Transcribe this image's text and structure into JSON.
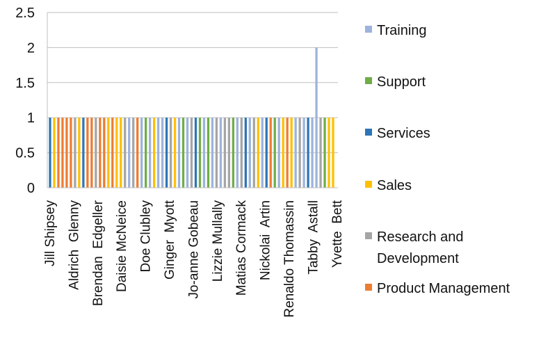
{
  "chart_data": {
    "type": "bar",
    "title": "",
    "xlabel": "",
    "ylabel": "",
    "ylim": [
      0,
      2.5
    ],
    "yticks": [
      "0",
      "0.5",
      "1",
      "1.5",
      "2",
      "2.5"
    ],
    "grid": true,
    "legend_position": "right",
    "x_tick_labels": [
      "Jill Shipsey",
      "Aldrich  Glenny",
      "Brendan  Edgeller",
      "Daisie McNeice",
      "Doe Clubley",
      "Ginger  Myott",
      "Jo-anne Gobeau",
      "Lizzie Mullally",
      "Matias Cormack",
      "Nickolai  Artin",
      "Renaldo Thomassin",
      "Tabby  Astall",
      "Yvette  Bett"
    ],
    "legend": [
      {
        "name": "Training",
        "color": "#9db3dc"
      },
      {
        "name": "Support",
        "color": "#70ad47"
      },
      {
        "name": "Services",
        "color": "#2e75b6"
      },
      {
        "name": "Sales",
        "color": "#ffc000"
      },
      {
        "name": "Research and Development",
        "color": "#a5a5a5"
      },
      {
        "name": "Product Management",
        "color": "#ed7d31"
      }
    ],
    "bars": [
      {
        "series": "Services",
        "value": 1
      },
      {
        "series": "Sales",
        "value": 1
      },
      {
        "series": "Product Management",
        "value": 1
      },
      {
        "series": "Product Management",
        "value": 1
      },
      {
        "series": "Product Management",
        "value": 1
      },
      {
        "series": "Product Management",
        "value": 1
      },
      {
        "series": "Research and Development",
        "value": 1
      },
      {
        "series": "Sales",
        "value": 1
      },
      {
        "series": "Services",
        "value": 1
      },
      {
        "series": "Product Management",
        "value": 1
      },
      {
        "series": "Product Management",
        "value": 1
      },
      {
        "series": "Research and Development",
        "value": 1
      },
      {
        "series": "Product Management",
        "value": 1
      },
      {
        "series": "Product Management",
        "value": 1
      },
      {
        "series": "Sales",
        "value": 1
      },
      {
        "series": "Product Management",
        "value": 1
      },
      {
        "series": "Sales",
        "value": 1
      },
      {
        "series": "Sales",
        "value": 1
      },
      {
        "series": "Research and Development",
        "value": 1
      },
      {
        "series": "Training",
        "value": 1
      },
      {
        "series": "Research and Development",
        "value": 1
      },
      {
        "series": "Product Management",
        "value": 1
      },
      {
        "series": "Training",
        "value": 1
      },
      {
        "series": "Support",
        "value": 1
      },
      {
        "series": "Training",
        "value": 1
      },
      {
        "series": "Sales",
        "value": 1
      },
      {
        "series": "Training",
        "value": 1
      },
      {
        "series": "Training",
        "value": 1
      },
      {
        "series": "Services",
        "value": 1
      },
      {
        "series": "Research and Development",
        "value": 1
      },
      {
        "series": "Sales",
        "value": 1
      },
      {
        "series": "Training",
        "value": 1
      },
      {
        "series": "Support",
        "value": 1
      },
      {
        "series": "Training",
        "value": 1
      },
      {
        "series": "Research and Development",
        "value": 1
      },
      {
        "series": "Services",
        "value": 1
      },
      {
        "series": "Support",
        "value": 1
      },
      {
        "series": "Training",
        "value": 1
      },
      {
        "series": "Support",
        "value": 1
      },
      {
        "series": "Training",
        "value": 1
      },
      {
        "series": "Research and Development",
        "value": 1
      },
      {
        "series": "Training",
        "value": 1
      },
      {
        "series": "Research and Development",
        "value": 1
      },
      {
        "series": "Research and Development",
        "value": 1
      },
      {
        "series": "Support",
        "value": 1
      },
      {
        "series": "Training",
        "value": 1
      },
      {
        "series": "Research and Development",
        "value": 1
      },
      {
        "series": "Services",
        "value": 1
      },
      {
        "series": "Training",
        "value": 1
      },
      {
        "series": "Research and Development",
        "value": 1
      },
      {
        "series": "Sales",
        "value": 1
      },
      {
        "series": "Training",
        "value": 1
      },
      {
        "series": "Services",
        "value": 1
      },
      {
        "series": "Product Management",
        "value": 1
      },
      {
        "series": "Support",
        "value": 1
      },
      {
        "series": "Training",
        "value": 1
      },
      {
        "series": "Sales",
        "value": 1
      },
      {
        "series": "Product Management",
        "value": 1
      },
      {
        "series": "Sales",
        "value": 1
      },
      {
        "series": "Training",
        "value": 1
      },
      {
        "series": "Research and Development",
        "value": 1
      },
      {
        "series": "Training",
        "value": 1
      },
      {
        "series": "Services",
        "value": 1
      },
      {
        "series": "Training",
        "value": 1
      },
      {
        "series": "Training",
        "value": 2
      },
      {
        "series": "Research and Development",
        "value": 1
      },
      {
        "series": "Support",
        "value": 1
      },
      {
        "series": "Sales",
        "value": 1
      },
      {
        "series": "Sales",
        "value": 1
      }
    ]
  }
}
